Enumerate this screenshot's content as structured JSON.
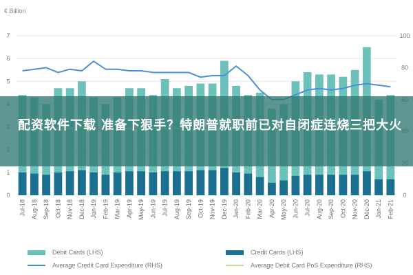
{
  "chart_data": {
    "type": "bar",
    "unit_label": "€ Billion",
    "categories": [
      "Jul-18",
      "Aug-18",
      "Sep-18",
      "Oct-18",
      "Nov-18",
      "Dec-18",
      "Jan-19",
      "Feb-19",
      "Mar-19",
      "Apr-19",
      "May-19",
      "Jun-19",
      "Jul-19",
      "Aug-19",
      "Sep-19",
      "Oct-19",
      "Nov-19",
      "Dec-19",
      "Jan-20",
      "Feb-20",
      "Mar-20",
      "Apr-20",
      "May-20",
      "Jun-20",
      "Jul-20",
      "Aug-20",
      "Sep-20",
      "Oct-20",
      "Nov-20",
      "Dec-20",
      "Jan-21",
      "Feb-21"
    ],
    "x_tick_labels": [
      "Jul-18",
      "Aug-18",
      "Sep-18",
      "Oct-18",
      "Nov-18",
      "Dec-18",
      "Jan-19",
      "Feb-19",
      "Mar-19",
      "Apr-19",
      "May-19",
      "Jun-19",
      "Jul-19",
      "Aug-19",
      "Sep-19",
      "Oct-19",
      "Nov-19",
      "Dec-19",
      "Jan-20",
      "Feb-20",
      "Mar-20",
      "Apr-20",
      "May-20",
      "Jun-20",
      "Jul-20",
      "Aug-20",
      "Sep-20",
      "Oct-20",
      "Nov-20",
      "Dec-20",
      "Jan-21",
      "Feb-21"
    ],
    "left_axis": {
      "ylim": [
        0,
        7
      ],
      "ticks": [
        "0",
        "1",
        "2",
        "3",
        "4",
        "5",
        "6",
        "7"
      ]
    },
    "right_axis": {
      "ylim": [
        0,
        100
      ],
      "ticks": [
        "0",
        "20",
        "40",
        "60",
        "80",
        "100"
      ]
    },
    "grid": true,
    "legend_position": "bottom",
    "series": [
      {
        "name": "Debit Cards (LHS)",
        "kind": "bar",
        "axis": "left",
        "color": "#6cc2bb",
        "values": [
          4.4,
          4.3,
          4.0,
          4.7,
          4.7,
          5.0,
          4.3,
          4.0,
          4.3,
          4.7,
          4.7,
          4.4,
          5.1,
          4.7,
          4.8,
          4.9,
          4.9,
          5.9,
          4.8,
          4.4,
          4.5,
          3.8,
          4.0,
          5.0,
          5.4,
          5.3,
          5.3,
          5.2,
          5.5,
          6.5,
          4.2,
          4.4
        ]
      },
      {
        "name": "Credit Cards (LHS)",
        "kind": "bar",
        "axis": "left",
        "color": "#1b6f8f",
        "values": [
          1.0,
          0.95,
          0.9,
          1.0,
          1.05,
          1.1,
          1.0,
          0.9,
          1.0,
          1.05,
          1.05,
          1.0,
          1.05,
          1.05,
          1.05,
          1.1,
          1.1,
          1.2,
          1.0,
          0.95,
          0.8,
          0.55,
          0.65,
          0.85,
          0.9,
          0.9,
          0.9,
          0.9,
          0.9,
          1.05,
          0.7,
          0.7
        ]
      },
      {
        "name": "Average Credit Card Expenditure (RHS)",
        "kind": "line",
        "axis": "right",
        "color": "#4a90d9",
        "values": [
          78,
          79,
          80,
          77,
          79,
          78,
          84,
          79,
          79,
          78,
          78,
          77,
          77,
          77,
          77,
          74,
          75,
          75,
          81,
          75,
          66,
          60,
          60,
          63,
          66,
          67,
          66,
          67,
          69,
          70,
          69,
          68
        ]
      },
      {
        "name": "Average Debit Card PoS Expenditure (RHS)",
        "kind": "line",
        "axis": "right",
        "color": "#c8d89a",
        "values": [
          41,
          41,
          41,
          41,
          42,
          43,
          42,
          41,
          41,
          42,
          42,
          42,
          42,
          42,
          42,
          42,
          42,
          43,
          41,
          41,
          41,
          41,
          41,
          42,
          42,
          42,
          42,
          42,
          43,
          45,
          44,
          43
        ]
      }
    ]
  },
  "banner": {
    "text": "配资软件下载 准备下狠手？特朗普就职前已对自闭症连烧三把大火"
  }
}
